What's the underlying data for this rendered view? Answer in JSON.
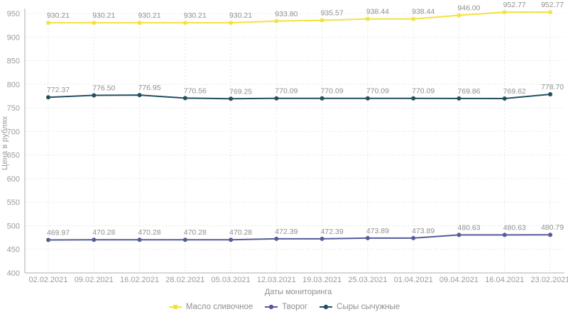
{
  "chart_data": {
    "type": "line",
    "title": "",
    "xlabel": "Даты мониторинга",
    "ylabel": "Цена в рублях",
    "ylim": [
      400,
      950
    ],
    "ytick_step": 50,
    "grid": true,
    "legend_position": "bottom",
    "categories": [
      "02.02.2021",
      "09.02.2021",
      "16.02.2021",
      "28.02.2021",
      "05.03.2021",
      "12.03.2021",
      "19.03.2021",
      "25.03.2021",
      "01.04.2021",
      "09.04.2021",
      "16.04.2021",
      "23.02.2021"
    ],
    "series": [
      {
        "name": "Масло сливочное",
        "color": "#f4e13c",
        "marker": "square",
        "values": [
          930.21,
          930.21,
          930.21,
          930.21,
          930.21,
          933.8,
          935.57,
          938.44,
          938.44,
          946.0,
          952.77,
          952.77
        ]
      },
      {
        "name": "Творог",
        "color": "#565a9b",
        "marker": "circle",
        "values": [
          469.97,
          470.28,
          470.28,
          470.28,
          470.28,
          472.39,
          472.39,
          473.89,
          473.89,
          480.63,
          480.63,
          480.79
        ]
      },
      {
        "name": "Сыры сычужные",
        "color": "#214f5e",
        "marker": "circle",
        "values": [
          772.37,
          776.5,
          776.95,
          770.56,
          769.25,
          770.09,
          770.09,
          770.09,
          770.09,
          769.86,
          769.62,
          778.7
        ]
      }
    ],
    "colors": {
      "data_label": "#8f8f8f",
      "tick_label": "#9b9b9b",
      "axis_line": "#c9c9c9",
      "grid_line": "#e0e0e0"
    }
  }
}
